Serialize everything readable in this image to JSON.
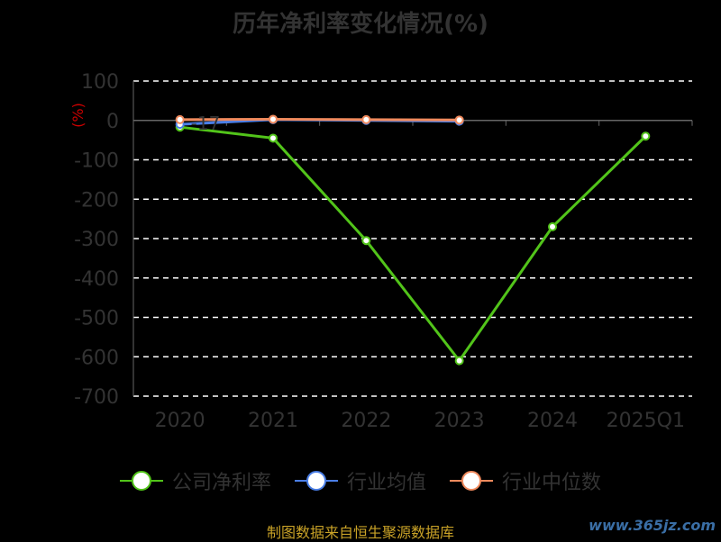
{
  "chart_data": {
    "type": "line",
    "title": "历年净利率变化情况(%)",
    "ylabel": "(%)",
    "categories": [
      "2020",
      "2021",
      "2022",
      "2023",
      "2024",
      "2025Q1"
    ],
    "ylim": [
      -700,
      100
    ],
    "yticks": [
      100,
      0,
      -100,
      -200,
      -300,
      -400,
      -500,
      -600,
      -700
    ],
    "grid": true,
    "legend_position": "bottom",
    "series": [
      {
        "name": "公司净利率",
        "color": "#52c41a",
        "values": [
          -17,
          -45,
          -305,
          -610,
          -270,
          -40
        ]
      },
      {
        "name": "行业均值",
        "color": "#4a7ee6",
        "values": [
          -10,
          2,
          0,
          -2,
          null,
          null
        ]
      },
      {
        "name": "行业中位数",
        "color": "#f08a5d",
        "values": [
          2,
          3,
          2,
          1,
          null,
          null
        ]
      }
    ],
    "annotations": [
      "-17"
    ]
  },
  "source_text": "制图数据来自恒生聚源数据库",
  "watermark": "www.365jz.com"
}
